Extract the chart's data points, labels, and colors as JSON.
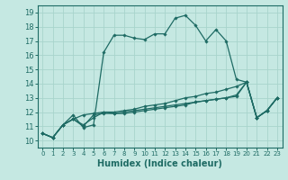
{
  "xlabel": "Humidex (Indice chaleur)",
  "xlim": [
    -0.5,
    23.5
  ],
  "ylim": [
    9.5,
    19.5
  ],
  "xticks": [
    0,
    1,
    2,
    3,
    4,
    5,
    6,
    7,
    8,
    9,
    10,
    11,
    12,
    13,
    14,
    15,
    16,
    17,
    18,
    19,
    20,
    21,
    22,
    23
  ],
  "yticks": [
    10,
    11,
    12,
    13,
    14,
    15,
    16,
    17,
    18,
    19
  ],
  "bg_color": "#c5e8e2",
  "grid_color": "#a8d4cc",
  "line_color": "#1e6b64",
  "lines": [
    {
      "x": [
        0,
        1,
        2,
        3,
        4,
        5,
        6,
        7,
        8,
        9,
        10,
        11,
        12,
        13,
        14,
        15,
        16,
        17,
        18,
        19,
        20,
        21,
        22,
        23
      ],
      "y": [
        10.5,
        10.2,
        11.1,
        11.8,
        10.9,
        11.1,
        16.2,
        17.4,
        17.4,
        17.2,
        17.1,
        17.5,
        17.5,
        18.6,
        18.8,
        18.1,
        17.0,
        17.8,
        17.0,
        14.3,
        14.1,
        11.6,
        12.1,
        13.0
      ]
    },
    {
      "x": [
        0,
        1,
        2,
        3,
        4,
        5,
        6,
        7,
        8,
        9,
        10,
        11,
        12,
        13,
        14,
        15,
        16,
        17,
        18,
        19,
        20,
        21,
        22,
        23
      ],
      "y": [
        10.5,
        10.2,
        11.1,
        11.5,
        11.8,
        11.9,
        12.0,
        12.0,
        12.1,
        12.2,
        12.4,
        12.5,
        12.6,
        12.8,
        13.0,
        13.1,
        13.3,
        13.4,
        13.6,
        13.8,
        14.1,
        11.6,
        12.1,
        13.0
      ]
    },
    {
      "x": [
        0,
        1,
        2,
        3,
        4,
        5,
        6,
        7,
        8,
        9,
        10,
        11,
        12,
        13,
        14,
        15,
        16,
        17,
        18,
        19,
        20,
        21,
        22,
        23
      ],
      "y": [
        10.5,
        10.2,
        11.1,
        11.5,
        11.1,
        11.6,
        12.0,
        11.9,
        11.9,
        12.0,
        12.1,
        12.2,
        12.3,
        12.4,
        12.5,
        12.7,
        12.8,
        12.9,
        13.0,
        13.2,
        14.1,
        11.6,
        12.1,
        13.0
      ]
    },
    {
      "x": [
        0,
        1,
        2,
        3,
        4,
        5,
        6,
        7,
        8,
        9,
        10,
        11,
        12,
        13,
        14,
        15,
        16,
        17,
        18,
        19,
        20,
        21,
        22,
        23
      ],
      "y": [
        10.5,
        10.2,
        11.1,
        11.5,
        11.0,
        11.8,
        11.9,
        11.9,
        12.0,
        12.1,
        12.2,
        12.3,
        12.4,
        12.5,
        12.6,
        12.7,
        12.8,
        12.9,
        13.0,
        13.1,
        14.1,
        11.6,
        12.1,
        13.0
      ]
    }
  ]
}
